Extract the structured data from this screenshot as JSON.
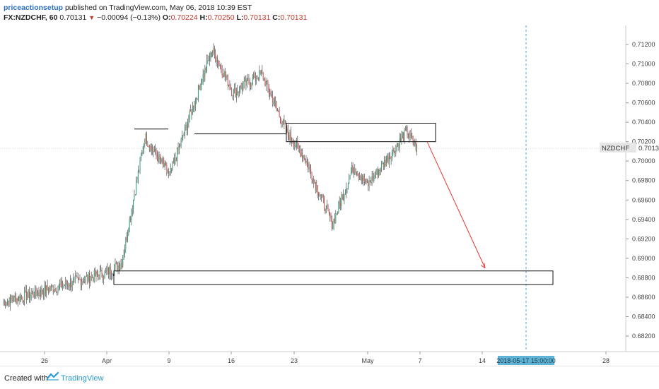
{
  "header": {
    "author": "priceactionsetup",
    "published": "published on TradingView.com, May 06, 2018 10:39 EST",
    "symbol": "FX:NZDCHF, 60",
    "last": "0.70131",
    "change": "−0.00094 (−0.13%)",
    "o_label": "O:",
    "o": "0.70224",
    "h_label": "H:",
    "h": "0.70250",
    "l_label": "L:",
    "l": "0.70131",
    "c_label": "C:",
    "c": "0.70131"
  },
  "price_tag": {
    "symbol": "NZDCHF",
    "value": "0.70131"
  },
  "crosshair_time": "2018-05-17 15:00:00",
  "footer": {
    "created": "Created with",
    "brand": "TradingView"
  },
  "colors": {
    "up": "#2f9e74",
    "down": "#d44d4d",
    "arrow": "#e53935",
    "crosshair": "#4aa3df",
    "axis_label_bg": "#5fb3d6"
  },
  "chart_data": {
    "type": "candlestick",
    "symbol": "NZDCHF",
    "interval": "60",
    "y_ticks": [
      "0.71200",
      "0.71000",
      "0.70800",
      "0.70600",
      "0.70400",
      "0.70200",
      "0.70000",
      "0.69800",
      "0.69600",
      "0.69400",
      "0.69200",
      "0.69000",
      "0.68800",
      "0.68600",
      "0.68400",
      "0.68200"
    ],
    "x_ticks": [
      "26",
      "Apr",
      "9",
      "16",
      "23",
      "May",
      "7",
      "14",
      "28"
    ],
    "ylim": [
      0.6812,
      0.713
    ],
    "path": [
      [
        "26",
        0.6855
      ],
      [
        "Apr",
        0.6885
      ],
      [
        "Apr",
        0.6895
      ],
      [
        "9",
        0.7025
      ],
      [
        "9",
        0.6985
      ],
      [
        "16",
        0.7115
      ],
      [
        "16",
        0.707
      ],
      [
        "16",
        0.709
      ],
      [
        "23",
        0.703
      ],
      [
        "23",
        0.7005
      ],
      [
        "23",
        0.6935
      ],
      [
        "May",
        0.6995
      ],
      [
        "May",
        0.6975
      ],
      [
        "7",
        0.703
      ],
      [
        "7",
        0.7013
      ]
    ],
    "zones": [
      {
        "from": "Apr",
        "to": "May 17",
        "low": 0.6873,
        "high": 0.6887
      },
      {
        "from": "23",
        "to": "May 8",
        "low": 0.702,
        "high": 0.7039
      }
    ],
    "levels": [
      0.7033,
      0.7028
    ],
    "last_price": 0.70131,
    "projection_arrow": {
      "from": 0.702,
      "to": 0.689
    }
  }
}
